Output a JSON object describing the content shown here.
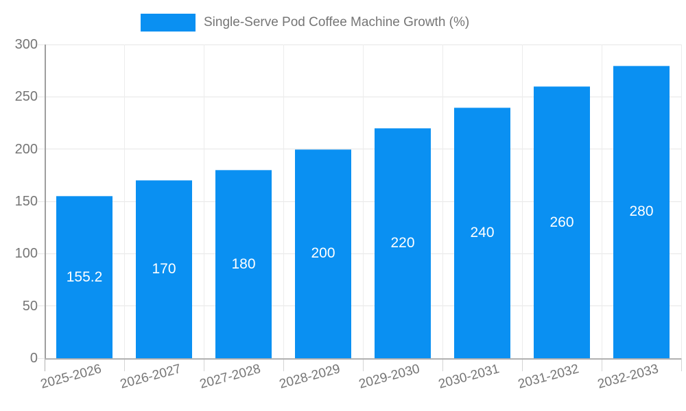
{
  "chart_data": {
    "type": "bar",
    "title": "Single-Serve Pod Coffee Machine Growth (%)",
    "legend": {
      "position": "top",
      "entries": [
        "Single-Serve Pod Coffee Machine Growth (%)"
      ]
    },
    "categories": [
      "2025-2026",
      "2026-2027",
      "2027-2028",
      "2028-2029",
      "2029-2030",
      "2030-2031",
      "2031-2032",
      "2032-2033"
    ],
    "values": [
      155.2,
      170,
      180,
      200,
      220,
      240,
      260,
      280
    ],
    "value_labels": [
      "155.2",
      "170",
      "180",
      "200",
      "220",
      "240",
      "260",
      "280"
    ],
    "xlabel": "",
    "ylabel": "",
    "ylim": [
      0,
      300
    ],
    "yticks": [
      0,
      50,
      100,
      150,
      200,
      250,
      300
    ],
    "grid": true,
    "x_label_rotation_deg": -15,
    "colors": {
      "bar": "#0a90f2",
      "value_label": "#ffffff",
      "axis_text": "#757575",
      "axis_line": "#9e9e9e",
      "gridline": "#e6e6e6",
      "background": "#ffffff"
    }
  }
}
